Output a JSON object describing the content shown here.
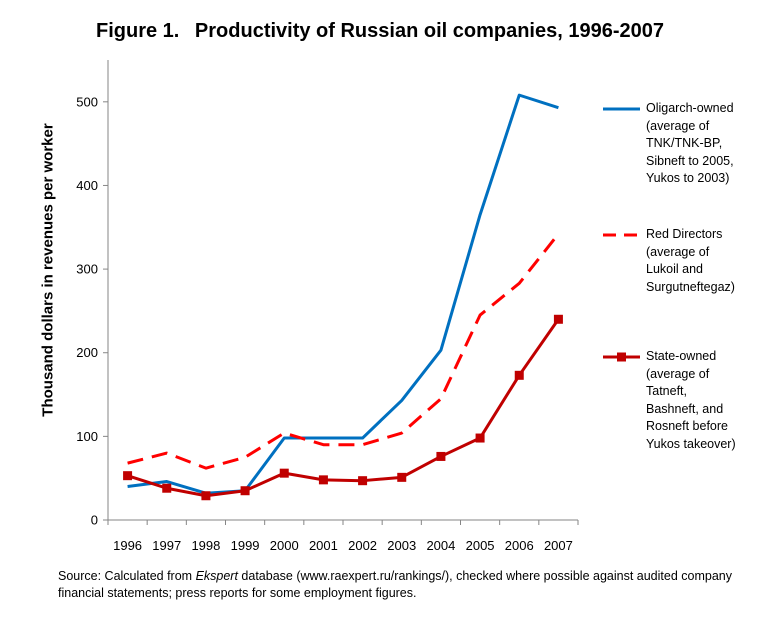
{
  "title": {
    "number": "Figure 1.",
    "text": "Productivity of Russian oil companies, 1996-2007"
  },
  "source": {
    "prefix": "Source: Calculated from ",
    "italic": "Ekspert",
    "suffix": " database (www.raexpert.ru/rankings/), checked where possible against audited company financial statements; press reports for some employment figures."
  },
  "chart_data": {
    "type": "line",
    "title": "Figure 1.   Productivity of Russian oil companies, 1996-2007",
    "xlabel": "",
    "ylabel": "Thousand dollars in revenues per worker",
    "x": [
      1996,
      1997,
      1998,
      1999,
      2000,
      2001,
      2002,
      2003,
      2004,
      2005,
      2006,
      2007
    ],
    "x_tick_labels": [
      "1996",
      "1997",
      "1998",
      "1999",
      "2000",
      "2001",
      "2002",
      "2003",
      "2004",
      "2005",
      "2006",
      "2007"
    ],
    "y_ticks": [
      0,
      100,
      200,
      300,
      400,
      500
    ],
    "ylim": [
      0,
      550
    ],
    "grid": false,
    "legend_position": "right",
    "series": [
      {
        "name": "Oligarch-owned (average of TNK/TNK-BP, Sibneft to 2005, Yukos to 2003)",
        "legend_lines": [
          "Oligarch-owned",
          "(average of",
          "TNK/TNK-BP,",
          "Sibneft to 2005,",
          "Yukos to 2003)"
        ],
        "style": "solid",
        "marker": "none",
        "color": "#0070C0",
        "values": [
          40,
          46,
          32,
          35,
          98,
          98,
          98,
          143,
          203,
          365,
          508,
          493
        ]
      },
      {
        "name": "Red Directors (average of Lukoil and Surgutneftegaz)",
        "legend_lines": [
          "Red Directors",
          "(average of",
          "Lukoil and",
          "Surgutneftegaz)"
        ],
        "style": "dashed",
        "marker": "none",
        "color": "#FF0000",
        "values": [
          68,
          80,
          62,
          75,
          104,
          90,
          90,
          104,
          145,
          245,
          283,
          342
        ]
      },
      {
        "name": "State-owned (average of Tatneft, Bashneft, and Rosneft before Yukos takeover)",
        "legend_lines": [
          "State-owned",
          "(average of",
          "Tatneft,",
          "Bashneft, and",
          "Rosneft before",
          "Yukos takeover)"
        ],
        "style": "solid",
        "marker": "square",
        "color": "#C00000",
        "values": [
          53,
          38,
          29,
          35,
          56,
          48,
          47,
          51,
          76,
          98,
          173,
          240
        ]
      }
    ]
  }
}
